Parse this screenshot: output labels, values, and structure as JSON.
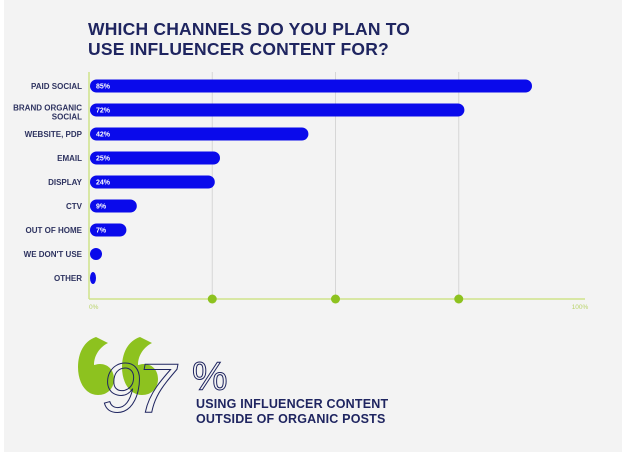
{
  "title_lines": [
    "WHICH CHANNELS DO YOU PLAN TO",
    "USE INFLUENCER CONTENT FOR?"
  ],
  "colors": {
    "bar": "#0a0aeb",
    "accent_green": "#8dc21f",
    "axis": "#cfe38a",
    "grid": "#d6d6d6",
    "navy": "#1f2560"
  },
  "chart_data": {
    "type": "bar",
    "orientation": "horizontal",
    "title": "WHICH CHANNELS DO YOU PLAN TO USE INFLUENCER CONTENT FOR?",
    "categories": [
      [
        "PAID SOCIAL"
      ],
      [
        "BRAND ORGANIC",
        "SOCIAL"
      ],
      [
        "WEBSITE, PDP"
      ],
      [
        "EMAIL"
      ],
      [
        "DISPLAY"
      ],
      [
        "CTV"
      ],
      [
        "OUT OF HOME"
      ],
      [
        "WE DON'T USE"
      ],
      [
        "OTHER"
      ]
    ],
    "values": [
      85,
      72,
      42,
      25,
      24,
      9,
      7,
      2,
      1
    ],
    "value_labels": [
      "85%",
      "72%",
      "42%",
      "25%",
      "24%",
      "9%",
      "7%",
      "",
      ""
    ],
    "xlim": [
      0,
      100
    ],
    "x_tick_labels": [
      "0%",
      "100%"
    ],
    "gridlines_at": [
      25,
      50,
      75
    ],
    "grid": true,
    "xlabel": "",
    "ylabel": ""
  },
  "stat": {
    "number": "97",
    "percent_sign": "%",
    "lines": [
      "USING INFLUENCER CONTENT",
      "OUTSIDE OF ORGANIC POSTS"
    ]
  }
}
